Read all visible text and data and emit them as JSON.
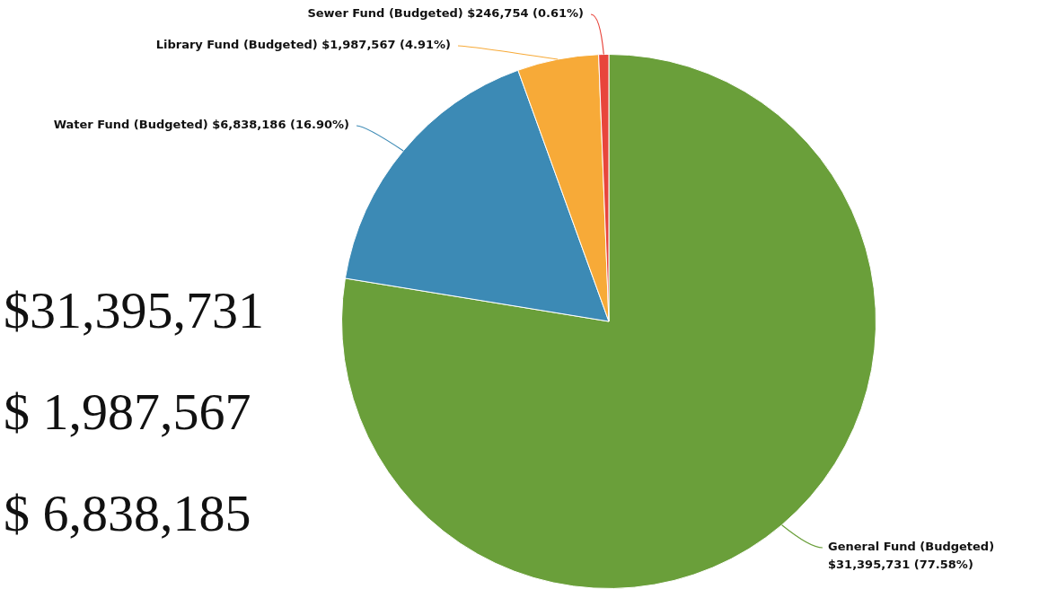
{
  "chart_data": {
    "type": "pie",
    "categories": [
      "General Fund (Budgeted)",
      "Water Fund (Budgeted)",
      "Library Fund (Budgeted)",
      "Sewer Fund (Budgeted)"
    ],
    "values": [
      31395731,
      6838186,
      1987567,
      246754
    ],
    "colors": [
      "#6a9f3a",
      "#3c8ab5",
      "#f7aa38",
      "#e8453c"
    ],
    "value_labels": [
      "$31,395,731 (77.58%)",
      "$6,838,186 (16.90%)",
      "$1,987,567 (4.91%)",
      "$246,754 (0.61%)"
    ],
    "annotations": [
      "$31,395,731",
      "$ 1,987,567",
      "$ 6,838,185"
    ],
    "legend": false
  }
}
